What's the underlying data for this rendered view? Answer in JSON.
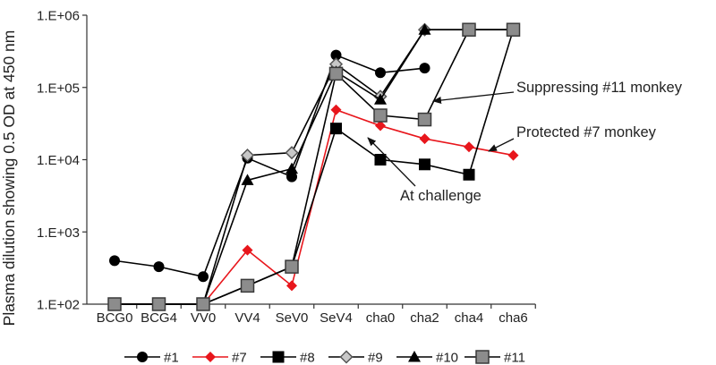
{
  "chart_data": {
    "type": "line",
    "ylabel": "Plasma dilution showing 0.5 OD at 450 nm",
    "yscale": "log",
    "ylim": [
      100,
      1000000
    ],
    "yticks": [
      {
        "value": 100,
        "label": "1.E+02"
      },
      {
        "value": 1000,
        "label": "1.E+03"
      },
      {
        "value": 10000,
        "label": "1.E+04"
      },
      {
        "value": 100000,
        "label": "1.E+05"
      },
      {
        "value": 1000000,
        "label": "1.E+06"
      }
    ],
    "categories": [
      "BCG0",
      "BCG4",
      "VV0",
      "VV4",
      "SeV0",
      "SeV4",
      "cha0",
      "cha2",
      "cha4",
      "cha6"
    ],
    "grid": false,
    "legend": "bottom",
    "series": [
      {
        "name": "#1",
        "color": "#000000",
        "marker": "circle",
        "values": [
          400,
          330,
          240,
          10500,
          5800,
          280000,
          160000,
          185000,
          null,
          null
        ]
      },
      {
        "name": "#7",
        "color": "#e8161c",
        "marker": "diamond",
        "values": [
          100,
          100,
          100,
          560,
          180,
          49000,
          29500,
          19500,
          15000,
          11500
        ]
      },
      {
        "name": "#8",
        "color": "#000000",
        "marker": "square",
        "values": [
          100,
          100,
          100,
          180,
          330,
          27000,
          10000,
          8600,
          6200,
          630000
        ]
      },
      {
        "name": "#9",
        "color": "#555555",
        "marker": "diamond-open",
        "values": [
          100,
          100,
          100,
          11500,
          12500,
          210000,
          75000,
          630000,
          630000,
          630000
        ]
      },
      {
        "name": "#10",
        "color": "#000000",
        "marker": "triangle",
        "values": [
          100,
          100,
          100,
          5200,
          7500,
          165000,
          68000,
          630000,
          630000,
          630000
        ]
      },
      {
        "name": "#11",
        "color": "#555555",
        "marker": "square-gray",
        "values": [
          100,
          100,
          100,
          180,
          330,
          155000,
          41000,
          36000,
          630000,
          630000
        ]
      }
    ],
    "annotations": [
      {
        "text": "Suppressing #11 monkey",
        "target": {
          "series": "#11",
          "x": "cha2"
        }
      },
      {
        "text": "Protected #7 monkey",
        "target": {
          "series": "#7",
          "x": "cha6"
        }
      },
      {
        "text": "At challenge",
        "target": {
          "x": "cha0"
        }
      }
    ]
  }
}
